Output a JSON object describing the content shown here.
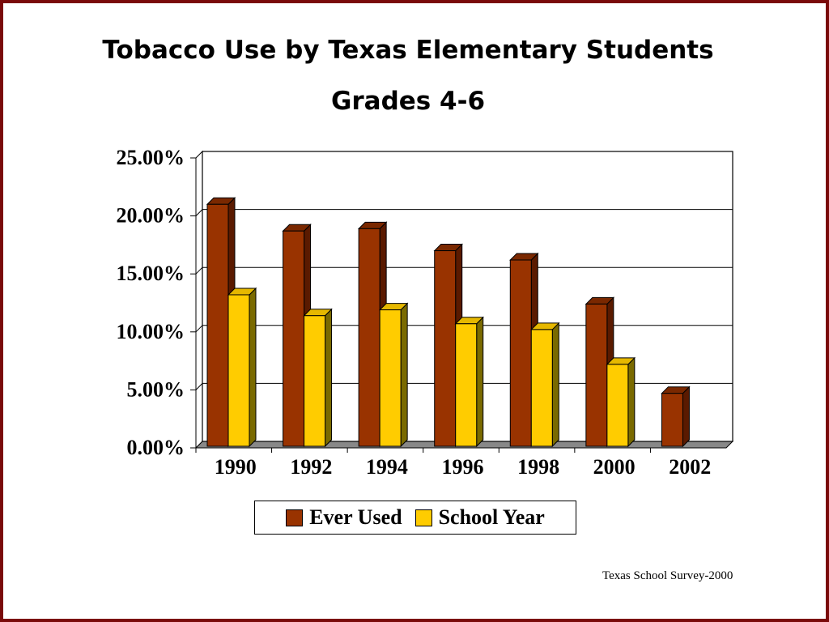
{
  "title_line1": "Tobacco Use by Texas Elementary Students",
  "title_line2": "Grades 4-6",
  "source_note": "Texas School Survey-2000",
  "colors": {
    "ever_used": "#993300",
    "ever_used_side": "#5a1a00",
    "ever_used_top": "#7a2800",
    "school_year": "#ffcc00",
    "school_year_side": "#7a6a00",
    "school_year_top": "#e6b800",
    "floor": "#888888",
    "frame": "#7a0a0a"
  },
  "chart_data": {
    "type": "bar",
    "categories": [
      "1990",
      "1992",
      "1994",
      "1996",
      "1998",
      "2000",
      "2002"
    ],
    "series": [
      {
        "name": "Ever Used",
        "values": [
          21.0,
          18.7,
          18.9,
          17.0,
          16.2,
          12.4,
          4.7
        ]
      },
      {
        "name": "School Year",
        "values": [
          13.2,
          11.4,
          11.9,
          10.7,
          10.2,
          7.2,
          null
        ]
      }
    ],
    "yticks": [
      "0.00%",
      "5.00%",
      "10.00%",
      "15.00%",
      "20.00%",
      "25.00%"
    ],
    "ylim": [
      0,
      25
    ],
    "grid": true,
    "legend": "bottom"
  }
}
